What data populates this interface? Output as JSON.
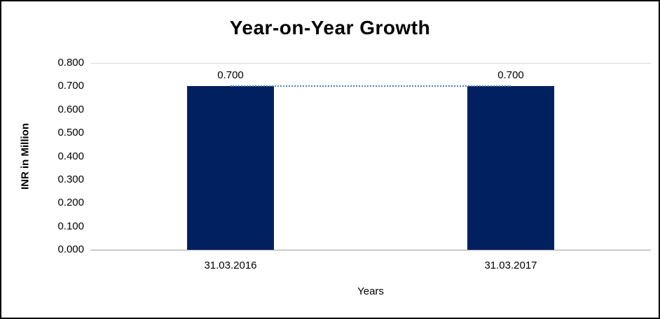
{
  "chart_data": {
    "type": "bar",
    "title": "Year-on-Year Growth",
    "xlabel": "Years",
    "ylabel": "INR in Million",
    "categories": [
      "31.03.2016",
      "31.03.2017"
    ],
    "values": [
      0.7,
      0.7
    ],
    "data_labels": [
      "0.700",
      "0.700"
    ],
    "ylim": [
      0,
      0.8
    ],
    "ytick_labels": [
      "0.000",
      "0.100",
      "0.200",
      "0.300",
      "0.400",
      "0.500",
      "0.600",
      "0.700",
      "0.800"
    ],
    "bar_color": "#002060",
    "connector_color": "#4a7ebb",
    "connector_style": "dotted",
    "grid": "top-border-only",
    "legend_position": "none",
    "frame_border_color": "#000000",
    "background_color": "#ffffff"
  }
}
